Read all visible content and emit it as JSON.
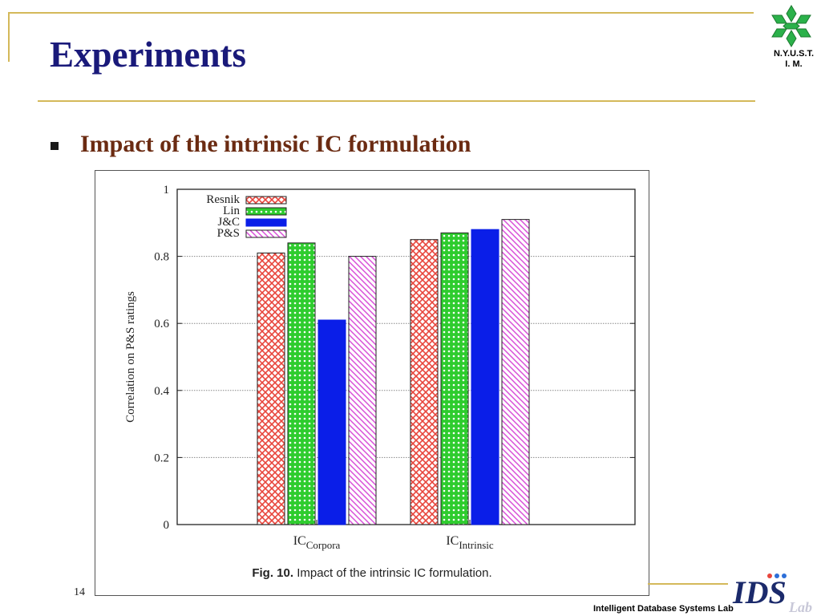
{
  "slide": {
    "title": "Experiments",
    "bullet": "Impact of the intrinsic IC formulation",
    "page_number": "14",
    "footer": "Intelligent Database Systems Lab",
    "university_logo_text": [
      "N.Y.U.S.T.",
      "I. M."
    ],
    "lab_logo_text": "IDS",
    "lab_logo_sub": "Lab",
    "colors": {
      "title": "#1a1a7a",
      "bullet": "#6b2b12",
      "rule": "#d4b95a"
    }
  },
  "chart_data": {
    "type": "bar",
    "caption_label": "Fig. 10.",
    "caption": "Impact of the intrinsic IC formulation.",
    "ylabel": "Correlation on P&S ratings",
    "xlabel": "",
    "ylim": [
      0,
      1
    ],
    "yticks": [
      "0",
      "0.2",
      "0.4",
      "0.6",
      "0.8",
      "1"
    ],
    "grid": "horizontal dotted",
    "legend_position": "top-left",
    "categories": [
      {
        "base": "IC",
        "sub": "Corpora"
      },
      {
        "base": "IC",
        "sub": "Intrinsic"
      }
    ],
    "series": [
      {
        "name": "Resnik",
        "values": [
          0.81,
          0.85
        ],
        "color": "#e8453c",
        "pattern": "crosshatch"
      },
      {
        "name": "Lin",
        "values": [
          0.84,
          0.87
        ],
        "color": "#2ecc2e",
        "pattern": "dots"
      },
      {
        "name": "J&C",
        "values": [
          0.61,
          0.88
        ],
        "color": "#0a1ee8",
        "pattern": "solid"
      },
      {
        "name": "P&S",
        "values": [
          0.8,
          0.91
        ],
        "color": "#d94fd9",
        "pattern": "diagonal"
      }
    ]
  }
}
